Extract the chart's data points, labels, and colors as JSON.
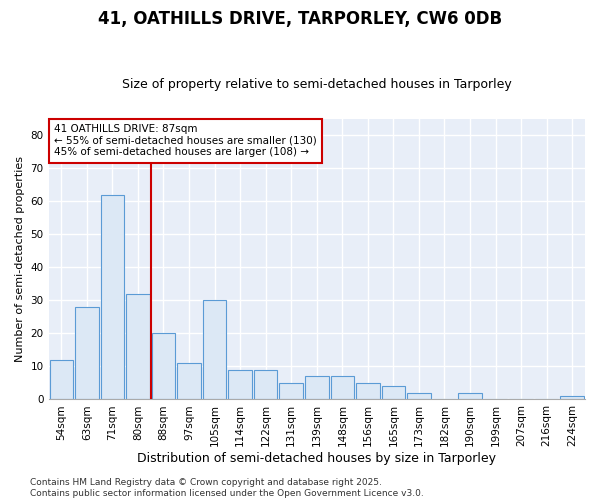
{
  "title": "41, OATHILLS DRIVE, TARPORLEY, CW6 0DB",
  "subtitle": "Size of property relative to semi-detached houses in Tarporley",
  "xlabel": "Distribution of semi-detached houses by size in Tarporley",
  "ylabel": "Number of semi-detached properties",
  "categories": [
    "54sqm",
    "63sqm",
    "71sqm",
    "80sqm",
    "88sqm",
    "97sqm",
    "105sqm",
    "114sqm",
    "122sqm",
    "131sqm",
    "139sqm",
    "148sqm",
    "156sqm",
    "165sqm",
    "173sqm",
    "182sqm",
    "190sqm",
    "199sqm",
    "207sqm",
    "216sqm",
    "224sqm"
  ],
  "values": [
    12,
    28,
    62,
    32,
    20,
    11,
    30,
    9,
    9,
    5,
    7,
    7,
    5,
    4,
    2,
    0,
    2,
    0,
    0,
    0,
    1
  ],
  "bar_color": "#dce8f5",
  "bar_edge_color": "#5b9bd5",
  "vline_color": "#cc0000",
  "vline_pos": 3.5,
  "annotation_text": "41 OATHILLS DRIVE: 87sqm\n← 55% of semi-detached houses are smaller (130)\n45% of semi-detached houses are larger (108) →",
  "annotation_box_color": "#cc0000",
  "ylim": [
    0,
    85
  ],
  "yticks": [
    0,
    10,
    20,
    30,
    40,
    50,
    60,
    70,
    80
  ],
  "footer": "Contains HM Land Registry data © Crown copyright and database right 2025.\nContains public sector information licensed under the Open Government Licence v3.0.",
  "plot_bg_color": "#e8eef8",
  "fig_bg_color": "#ffffff",
  "grid_color": "#ffffff",
  "title_fontsize": 12,
  "subtitle_fontsize": 9,
  "tick_fontsize": 7.5,
  "ylabel_fontsize": 8,
  "xlabel_fontsize": 9,
  "footer_fontsize": 6.5
}
